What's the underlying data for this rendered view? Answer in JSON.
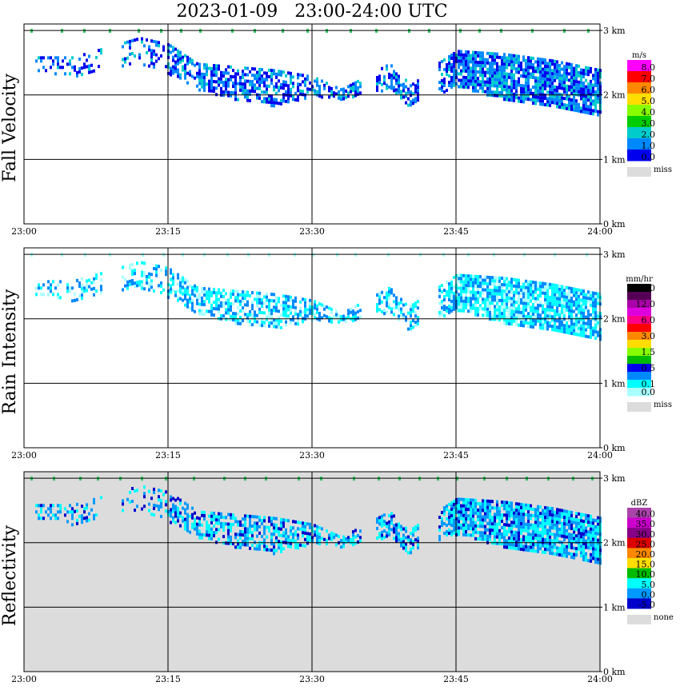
{
  "title": "2023-01-09   23:00-24:00 UTC",
  "x_ticks": [
    "23:00",
    "23:15",
    "23:30",
    "23:45",
    "24:00"
  ],
  "y_ticks": [
    "0 km",
    "1 km",
    "2 km",
    "3 km"
  ],
  "colors": {
    "grid": "#000000",
    "missing": "#dcdcdc",
    "noecho_reflectivity": "#dcdcdc"
  },
  "chart_data": [
    {
      "type": "heatmap",
      "ylabel": "Fall Velocity",
      "x_range": [
        "23:00",
        "24:00"
      ],
      "y_range_km": [
        0,
        3.1
      ],
      "legend": {
        "unit": "m/s",
        "levels": [
          "8.0",
          "7.0",
          "6.0",
          "5.0",
          "4.0",
          "3.0",
          "2.0",
          "1.0",
          "0.0"
        ],
        "colors": [
          "#ff00ff",
          "#ff0000",
          "#ff8800",
          "#ffdd00",
          "#88ff00",
          "#00cc00",
          "#00cccc",
          "#0088ff",
          "#0000ee"
        ],
        "missing_label": "miss"
      },
      "background": "#ffffff",
      "echo_band": [
        {
          "t": "23:01",
          "top_km": 2.6,
          "base_km": 2.4
        },
        {
          "t": "23:05",
          "top_km": 2.6,
          "base_km": 2.3
        },
        {
          "t": "23:12",
          "top_km": 2.9,
          "base_km": 2.5
        },
        {
          "t": "23:15",
          "top_km": 2.8,
          "base_km": 2.35
        },
        {
          "t": "23:18",
          "top_km": 2.5,
          "base_km": 2.1
        },
        {
          "t": "23:22",
          "top_km": 2.45,
          "base_km": 1.95
        },
        {
          "t": "23:26",
          "top_km": 2.4,
          "base_km": 1.85
        },
        {
          "t": "23:30",
          "top_km": 2.3,
          "base_km": 2.0
        },
        {
          "t": "23:33",
          "top_km": 2.1,
          "base_km": 1.95
        },
        {
          "t": "23:38",
          "top_km": 2.5,
          "base_km": 2.1
        },
        {
          "t": "23:40",
          "top_km": 2.2,
          "base_km": 1.85
        },
        {
          "t": "23:45",
          "top_km": 2.7,
          "base_km": 2.15
        },
        {
          "t": "23:50",
          "top_km": 2.65,
          "base_km": 1.95
        },
        {
          "t": "23:55",
          "top_km": 2.55,
          "base_km": 1.85
        },
        {
          "t": "24:00",
          "top_km": 2.4,
          "base_km": 1.7
        }
      ],
      "dominant_fall_velocity_ms": "0.0-2.0"
    },
    {
      "type": "heatmap",
      "ylabel": "Rain Intensity",
      "x_range": [
        "23:00",
        "24:00"
      ],
      "y_range_km": [
        0,
        3.1
      ],
      "legend": {
        "unit": "mm/hr",
        "levels": [
          "48.0",
          "",
          "12.0",
          "",
          "6.0",
          "",
          "3.0",
          "",
          "1.5",
          "",
          "0.5",
          "",
          "0.1",
          "0.0"
        ],
        "colors": [
          "#000000",
          "#550055",
          "#aa00aa",
          "#dd00dd",
          "#ff0088",
          "#ff0000",
          "#ff8800",
          "#ffdd00",
          "#88ff00",
          "#00bb00",
          "#0000ee",
          "#0088ff",
          "#00ffff",
          "#aaffff"
        ],
        "missing_label": "miss"
      },
      "background": "#ffffff",
      "dominant_rain_intensity_mmhr": "0.0-0.5"
    },
    {
      "type": "heatmap",
      "ylabel": "Reflectivity",
      "x_range": [
        "23:00",
        "24:00"
      ],
      "y_range_km": [
        0,
        3.1
      ],
      "legend": {
        "unit": "dBZ",
        "levels": [
          "40.0",
          "35.0",
          "30.0",
          "25.0",
          "20.0",
          "15.0",
          "10.0",
          "5.0",
          "0.0",
          "-5.0"
        ],
        "colors": [
          "#aa44aa",
          "#cc00cc",
          "#880088",
          "#dd0000",
          "#ff8800",
          "#ffdd00",
          "#00bb00",
          "#00ffff",
          "#0099ff",
          "#0000cc"
        ],
        "missing_label": "none"
      },
      "background": "#dcdcdc",
      "dominant_reflectivity_dbz": "0.0-10.0"
    }
  ]
}
